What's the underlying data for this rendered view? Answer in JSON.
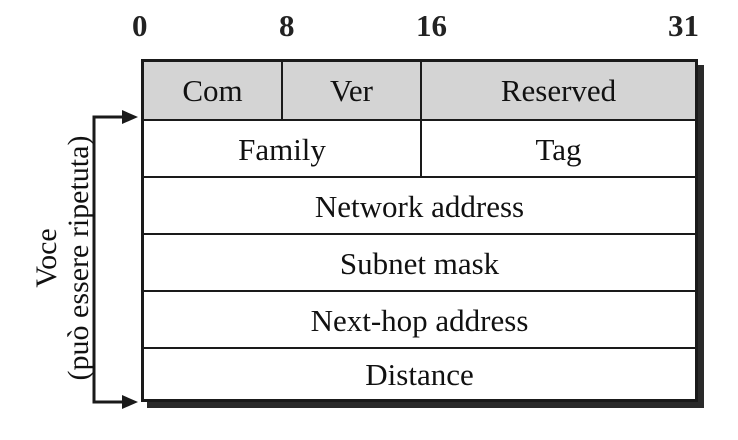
{
  "bit_positions": [
    "0",
    "8",
    "16",
    "31"
  ],
  "header": {
    "com": "Com",
    "ver": "Ver",
    "reserved": "Reserved"
  },
  "fields": {
    "family": "Family",
    "tag": "Tag",
    "network_address": "Network address",
    "subnet_mask": "Subnet mask",
    "next_hop_address": "Next-hop address",
    "distance": "Distance"
  },
  "side_label": {
    "line1": "Voce",
    "line2": "(può essere ripetuta)"
  },
  "colors": {
    "header_fill": "#d4d4d4",
    "border": "#1a1a1a",
    "background": "#ffffff"
  }
}
